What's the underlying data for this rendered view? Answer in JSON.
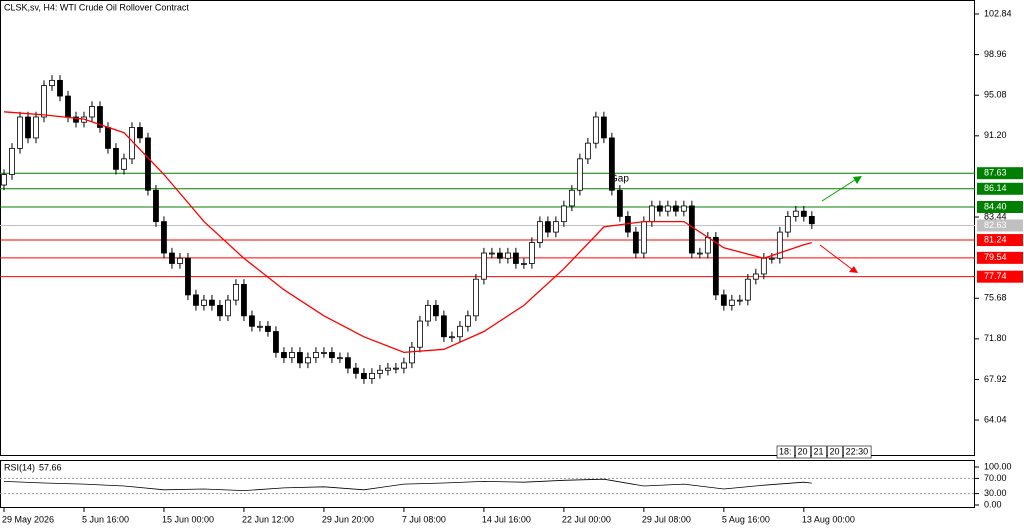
{
  "chart_data": [
    {
      "type": "candlestick",
      "title": "CLSK,sv, H4:  WTI Crude Oil Rollover Contract",
      "open": [
        86.5,
        87.5,
        90,
        93,
        91,
        93,
        96,
        96.5,
        95,
        93,
        92.5,
        93,
        94,
        92,
        90,
        88,
        89,
        92,
        91,
        86,
        83,
        80,
        79,
        79.5,
        76,
        75,
        75.5,
        75,
        74,
        75.5,
        77,
        74,
        73,
        73,
        72.5,
        70.5,
        70,
        70.5,
        69.5,
        70,
        70.5,
        70.5,
        70,
        70,
        69,
        68.5,
        68,
        68.5,
        68.8,
        69,
        69,
        69.5,
        71,
        73.5,
        75,
        74,
        72,
        72,
        73,
        74,
        77.5,
        80,
        80,
        79.5,
        80,
        79,
        79,
        81,
        83,
        82,
        83,
        84.5,
        86,
        89,
        90.5,
        93,
        91,
        86,
        83.5,
        82,
        80,
        83,
        84.5,
        84,
        84.5,
        84,
        84.5,
        80,
        80,
        81.5,
        76,
        75,
        75.5,
        75.5,
        77.5,
        78,
        79.5,
        79.5,
        82,
        83.5,
        84,
        83.5
      ],
      "high": [
        88,
        90.5,
        93.5,
        93.5,
        93.5,
        96.5,
        97,
        97,
        95.5,
        93.5,
        93.5,
        94.5,
        94.5,
        92.5,
        90.5,
        89.5,
        92.5,
        92.5,
        91.5,
        86.5,
        83.5,
        80.5,
        80,
        80,
        76.5,
        76,
        76,
        75.5,
        76,
        77.5,
        77.5,
        74.5,
        73.5,
        73.5,
        73,
        71,
        71,
        71,
        70.5,
        71,
        71,
        71,
        70.5,
        70.5,
        69.5,
        69,
        69,
        69.3,
        69.5,
        69.5,
        70,
        71.5,
        74,
        75.5,
        75.5,
        74.5,
        72.5,
        73.5,
        74.5,
        78,
        80.5,
        80.5,
        80.5,
        80.5,
        80.5,
        79.5,
        81.5,
        83.5,
        83.5,
        83.5,
        85,
        86.5,
        89.5,
        91,
        93.5,
        93.5,
        91.5,
        86.5,
        84,
        82.5,
        83.5,
        85,
        85,
        85,
        85,
        85,
        85,
        80.5,
        82,
        82,
        76.5,
        76,
        76,
        78,
        78.5,
        80,
        80,
        82.5,
        84,
        84.5,
        84.5,
        84
      ],
      "low": [
        86,
        87,
        89.5,
        90.5,
        90.5,
        92.5,
        95.5,
        94.5,
        92.5,
        92,
        92,
        92.5,
        91.5,
        89.5,
        87.5,
        87.5,
        88.5,
        90.5,
        85.5,
        82.5,
        79.5,
        78.5,
        78.5,
        75.5,
        74.5,
        74.5,
        74.5,
        73.5,
        73.5,
        75,
        73.5,
        72.5,
        72.5,
        72,
        70,
        69.5,
        69.5,
        69,
        69,
        69.5,
        70,
        69.5,
        69.5,
        68.5,
        68,
        67.5,
        67.5,
        68,
        68.3,
        68.5,
        68.5,
        69,
        70.5,
        73,
        73.5,
        71.5,
        71.5,
        71.5,
        72.5,
        73.5,
        77,
        79.5,
        79,
        79,
        78.5,
        78.5,
        78.5,
        80.5,
        81.5,
        81.5,
        82.5,
        84,
        85.5,
        88.5,
        90,
        90.5,
        85.5,
        83,
        81.5,
        79.5,
        79.5,
        82.5,
        83.5,
        83.5,
        83.5,
        83.5,
        79.5,
        79.5,
        79.5,
        75.5,
        74.5,
        74.5,
        75,
        75,
        77,
        77.5,
        79,
        79,
        81.5,
        83,
        83,
        82.3
      ],
      "close": [
        87.5,
        90,
        93,
        91,
        93,
        96,
        96.5,
        95,
        93,
        92.5,
        93,
        94,
        92,
        90,
        88,
        89,
        92,
        91,
        86,
        83,
        80,
        79,
        79.5,
        76,
        75,
        75.5,
        75,
        74,
        75.5,
        77,
        74,
        73,
        73,
        72.5,
        70.5,
        70,
        70.5,
        69.5,
        70,
        70.5,
        70.5,
        70,
        70,
        69,
        68.5,
        68,
        68.5,
        68.8,
        69,
        69,
        69.5,
        71,
        73.5,
        75,
        74,
        72,
        72,
        73,
        74,
        77.5,
        80,
        80,
        79.5,
        80,
        79,
        79,
        81,
        83,
        82,
        83,
        84.5,
        86,
        89,
        90.5,
        93,
        91,
        86,
        83.5,
        82,
        80,
        83,
        84.5,
        84,
        84.5,
        84,
        84.5,
        80,
        80,
        81.5,
        76,
        75,
        75.5,
        75.5,
        77.5,
        78,
        79.5,
        79.5,
        82,
        83.5,
        84,
        83.5,
        82.8
      ],
      "xlim": [
        -0.5,
        121.4
      ],
      "xticks": [
        {
          "value": 0,
          "label": "29 May 2026"
        },
        {
          "value": 10,
          "label": "5 Jun 16:00"
        },
        {
          "value": 20,
          "label": "15 Jun 00:00"
        },
        {
          "value": 30,
          "label": "22 Jun 12:00"
        },
        {
          "value": 40,
          "label": "29 Jun 20:00"
        },
        {
          "value": 50,
          "label": "7 Jul 08:00"
        },
        {
          "value": 60,
          "label": "14 Jul 16:00"
        },
        {
          "value": 70,
          "label": "22 Jul 00:00"
        },
        {
          "value": 80,
          "label": "29 Jul 08:00"
        },
        {
          "value": 90,
          "label": "5 Aug 16:00"
        },
        {
          "value": 100,
          "label": "13 Aug 00:00"
        }
      ],
      "ylim": [
        60.7,
        104.18
      ],
      "yticks": [
        102.84,
        98.96,
        95.08,
        {
          "value": 91.2,
          "label": "91.20"
        },
        83.44,
        75.68,
        {
          "value": 71.8,
          "label": "71.80"
        },
        67.92,
        64.04
      ],
      "moving_average": {
        "color": "#ff0000",
        "x": [
          0,
          5,
          10,
          15,
          20,
          25,
          30,
          35,
          40,
          45,
          50,
          55,
          60,
          65,
          70,
          75,
          80,
          85,
          90,
          95,
          100,
          101
        ],
        "values": [
          93.5,
          93.2,
          92.8,
          91.5,
          87.5,
          83,
          79.5,
          76.5,
          74,
          72,
          70.5,
          70.8,
          72.5,
          75,
          78.5,
          82.5,
          83,
          83,
          80.5,
          79.5,
          80.8,
          81
        ]
      },
      "levels": {
        "values": [
          87.63,
          86.14,
          84.4,
          81.24,
          79.54,
          77.74
        ],
        "value_labels": [
          "87.63",
          "86.14",
          "84.40",
          "81.24",
          "79.54",
          "77.74"
        ],
        "colors": [
          "#008000",
          "#008000",
          "#008000",
          "#ff0000",
          "#ff0000",
          "#ff0000"
        ]
      },
      "current_price": {
        "value": 82.63,
        "color": "#c0c0c0"
      },
      "annotation": "Gap",
      "time_boxes": [
        "18:",
        "20",
        "21",
        "20",
        "22:30"
      ]
    },
    {
      "type": "line",
      "title": "RSI(14)",
      "color": "#000000",
      "x": [
        0,
        5,
        10,
        15,
        20,
        25,
        30,
        35,
        40,
        45,
        50,
        55,
        60,
        65,
        70,
        75,
        80,
        85,
        90,
        95,
        100,
        101
      ],
      "values": [
        62,
        58,
        55,
        50,
        40,
        42,
        38,
        45,
        48,
        40,
        55,
        58,
        62,
        60,
        65,
        68,
        50,
        55,
        42,
        52,
        60,
        57.66
      ],
      "ylim": [
        0,
        100
      ],
      "yticks": [
        {
          "value": 100,
          "label": "100.00"
        },
        {
          "value": 70,
          "label": "70.00"
        },
        {
          "value": 30,
          "label": "30.00"
        },
        {
          "value": 0,
          "label": "0.00"
        }
      ]
    }
  ]
}
